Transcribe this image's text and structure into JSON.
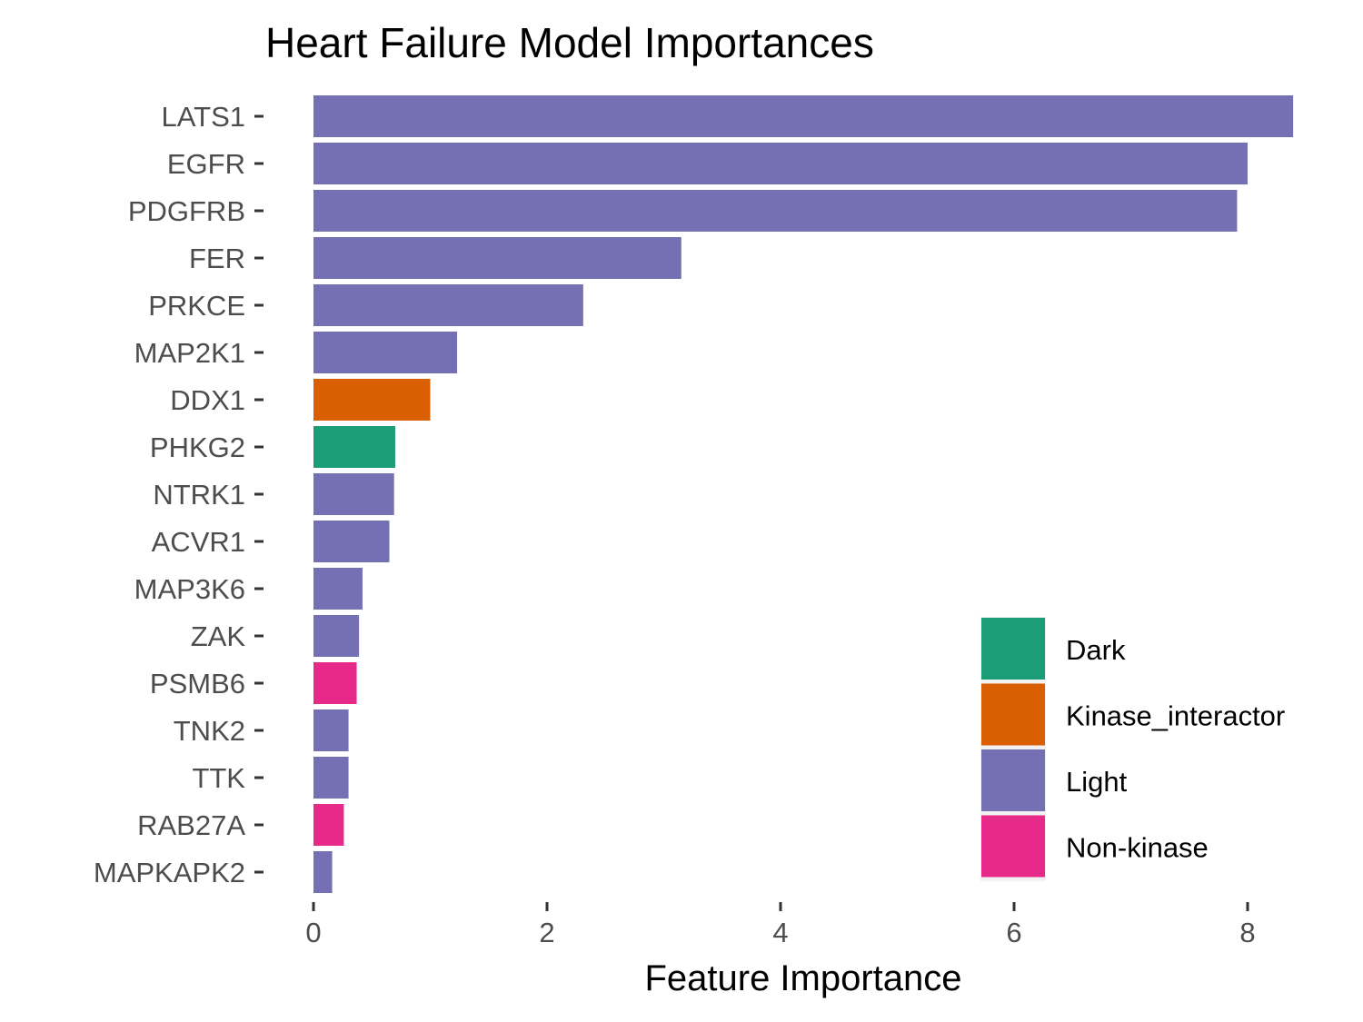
{
  "chart_data": {
    "type": "bar",
    "orientation": "horizontal",
    "title": "Heart Failure Model Importances",
    "xlabel": "Feature Importance",
    "ylabel": "",
    "xlim": [
      0,
      8.4
    ],
    "x_ticks": [
      0,
      2,
      4,
      6,
      8
    ],
    "grid": false,
    "legend_position": "bottom-right",
    "categories": [
      "LATS1",
      "EGFR",
      "PDGFRB",
      "FER",
      "PRKCE",
      "MAP2K1",
      "DDX1",
      "PHKG2",
      "NTRK1",
      "ACVR1",
      "MAP3K6",
      "ZAK",
      "PSMB6",
      "TNK2",
      "TTK",
      "RAB27A",
      "MAPKAPK2"
    ],
    "values": [
      8.39,
      8.0,
      7.91,
      3.15,
      2.31,
      1.23,
      1.0,
      0.7,
      0.69,
      0.65,
      0.42,
      0.39,
      0.37,
      0.3,
      0.3,
      0.26,
      0.16
    ],
    "groups": [
      "Light",
      "Light",
      "Light",
      "Light",
      "Light",
      "Light",
      "Kinase_interactor",
      "Dark",
      "Light",
      "Light",
      "Light",
      "Light",
      "Non-kinase",
      "Light",
      "Light",
      "Non-kinase",
      "Light"
    ],
    "legend": [
      {
        "name": "Dark",
        "color": "#1b9e77"
      },
      {
        "name": "Kinase_interactor",
        "color": "#d95f02"
      },
      {
        "name": "Light",
        "color": "#7570b3"
      },
      {
        "name": "Non-kinase",
        "color": "#e7298a"
      }
    ]
  }
}
